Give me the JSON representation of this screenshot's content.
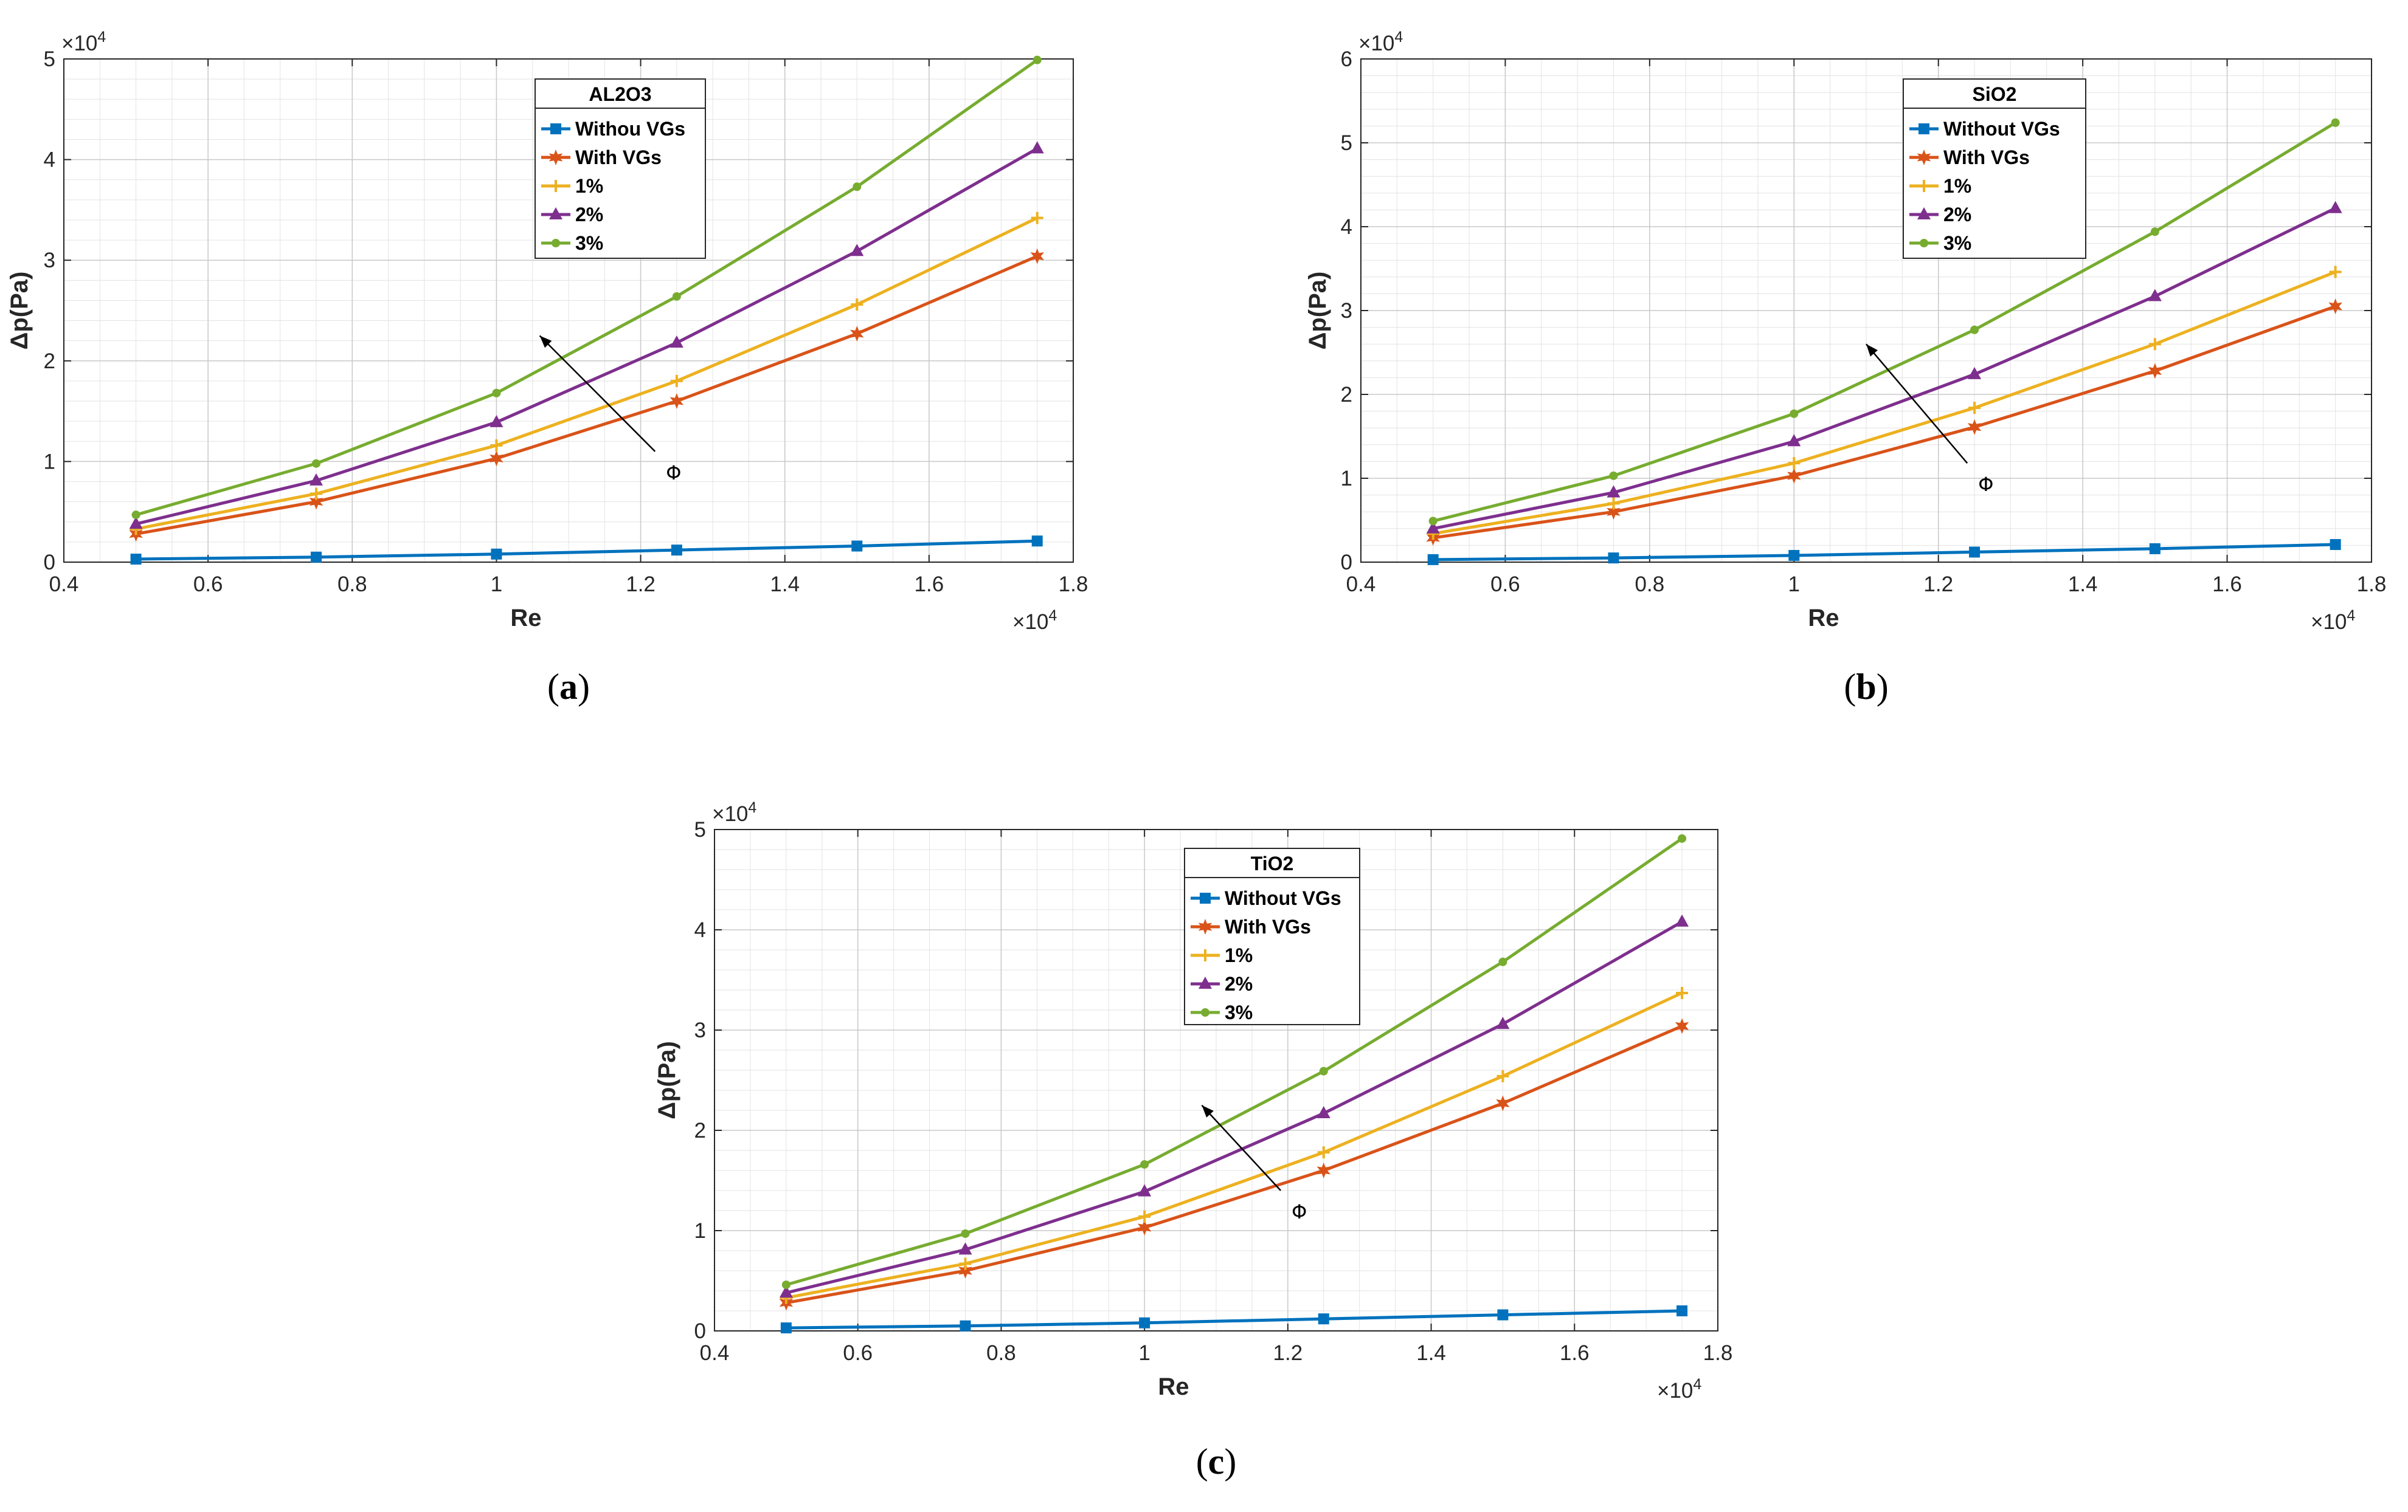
{
  "chart_data": [
    {
      "type": "line",
      "panel": "a",
      "caption": {
        "open": "(",
        "letter": "a",
        "close": ")"
      },
      "legend_title": "AL2O3",
      "legend_position": "top-center",
      "xlabel": "Re",
      "ylabel": "Δp(Pa)",
      "x_multiplier": "×10",
      "y_multiplier": "×10",
      "exponent": "4",
      "xlim": [
        0.4,
        1.8
      ],
      "ylim": [
        0,
        5
      ],
      "xticks": [
        "0.4",
        "0.6",
        "0.8",
        "1",
        "1.2",
        "1.4",
        "1.6",
        "1.8"
      ],
      "yticks": [
        "0",
        "1",
        "2",
        "3",
        "4",
        "5"
      ],
      "grid": true,
      "x": [
        0.5,
        0.75,
        1.0,
        1.25,
        1.5,
        1.75
      ],
      "series": [
        {
          "name": "Withou VGs",
          "color": "#0072BD",
          "marker": "square",
          "values": [
            0.03,
            0.05,
            0.08,
            0.12,
            0.16,
            0.21
          ]
        },
        {
          "name": "With VGs",
          "color": "#D95319",
          "marker": "hexagram",
          "values": [
            0.28,
            0.6,
            1.03,
            1.6,
            2.27,
            3.04
          ]
        },
        {
          "name": "1%",
          "color": "#EDB120",
          "marker": "plus",
          "values": [
            0.33,
            0.68,
            1.16,
            1.8,
            2.56,
            3.42
          ]
        },
        {
          "name": "2%",
          "color": "#7E2F8E",
          "marker": "triangle",
          "values": [
            0.38,
            0.81,
            1.39,
            2.18,
            3.09,
            4.11
          ]
        },
        {
          "name": "3%",
          "color": "#77AC30",
          "marker": "dot",
          "values": [
            0.47,
            0.98,
            1.68,
            2.64,
            3.73,
            4.99
          ]
        }
      ],
      "annotation": {
        "text": "Φ",
        "arrow_from": [
          1.22,
          1.1
        ],
        "arrow_to": [
          1.06,
          2.25
        ]
      }
    },
    {
      "type": "line",
      "panel": "b",
      "caption": {
        "open": "(",
        "letter": "b",
        "close": ")"
      },
      "legend_title": "SiO2",
      "legend_position": "top-right",
      "xlabel": "Re",
      "ylabel": "Δp(Pa)",
      "x_multiplier": "×10",
      "y_multiplier": "×10",
      "exponent": "4",
      "xlim": [
        0.4,
        1.8
      ],
      "ylim": [
        0,
        6
      ],
      "xticks": [
        "0.4",
        "0.6",
        "0.8",
        "1",
        "1.2",
        "1.4",
        "1.6",
        "1.8"
      ],
      "yticks": [
        "0",
        "1",
        "2",
        "3",
        "4",
        "5",
        "6"
      ],
      "grid": true,
      "x": [
        0.5,
        0.75,
        1.0,
        1.25,
        1.5,
        1.75
      ],
      "series": [
        {
          "name": "Without VGs",
          "color": "#0072BD",
          "marker": "square",
          "values": [
            0.03,
            0.05,
            0.08,
            0.12,
            0.16,
            0.21
          ]
        },
        {
          "name": "With VGs",
          "color": "#D95319",
          "marker": "hexagram",
          "values": [
            0.29,
            0.6,
            1.03,
            1.61,
            2.28,
            3.05
          ]
        },
        {
          "name": "1%",
          "color": "#EDB120",
          "marker": "plus",
          "values": [
            0.34,
            0.7,
            1.18,
            1.84,
            2.6,
            3.46
          ]
        },
        {
          "name": "2%",
          "color": "#7E2F8E",
          "marker": "triangle",
          "values": [
            0.4,
            0.83,
            1.44,
            2.24,
            3.17,
            4.22
          ]
        },
        {
          "name": "3%",
          "color": "#77AC30",
          "marker": "dot",
          "values": [
            0.49,
            1.03,
            1.77,
            2.77,
            3.94,
            5.24
          ]
        }
      ],
      "annotation": {
        "text": "Φ",
        "arrow_from": [
          1.24,
          1.18
        ],
        "arrow_to": [
          1.1,
          2.6
        ]
      }
    },
    {
      "type": "line",
      "panel": "c",
      "caption": {
        "open": "(",
        "letter": "c",
        "close": ")"
      },
      "legend_title": "TiO2",
      "legend_position": "top-center",
      "xlabel": "Re",
      "ylabel": "Δp(Pa)",
      "x_multiplier": "×10",
      "y_multiplier": "×10",
      "exponent": "4",
      "xlim": [
        0.4,
        1.8
      ],
      "ylim": [
        0,
        5
      ],
      "xticks": [
        "0.4",
        "0.6",
        "0.8",
        "1",
        "1.2",
        "1.4",
        "1.6",
        "1.8"
      ],
      "yticks": [
        "0",
        "1",
        "2",
        "3",
        "4",
        "5"
      ],
      "grid": true,
      "x": [
        0.5,
        0.75,
        1.0,
        1.25,
        1.5,
        1.75
      ],
      "series": [
        {
          "name": "Without VGs",
          "color": "#0072BD",
          "marker": "square",
          "values": [
            0.03,
            0.05,
            0.08,
            0.12,
            0.16,
            0.2
          ]
        },
        {
          "name": "With VGs",
          "color": "#D95319",
          "marker": "hexagram",
          "values": [
            0.28,
            0.6,
            1.03,
            1.6,
            2.27,
            3.04
          ]
        },
        {
          "name": "1%",
          "color": "#EDB120",
          "marker": "plus",
          "values": [
            0.33,
            0.67,
            1.14,
            1.78,
            2.54,
            3.37
          ]
        },
        {
          "name": "2%",
          "color": "#7E2F8E",
          "marker": "triangle",
          "values": [
            0.38,
            0.81,
            1.39,
            2.17,
            3.06,
            4.08
          ]
        },
        {
          "name": "3%",
          "color": "#77AC30",
          "marker": "dot",
          "values": [
            0.46,
            0.97,
            1.66,
            2.59,
            3.68,
            4.91
          ]
        }
      ],
      "annotation": {
        "text": "Φ",
        "arrow_from": [
          1.19,
          1.4
        ],
        "arrow_to": [
          1.08,
          2.25
        ]
      }
    }
  ]
}
